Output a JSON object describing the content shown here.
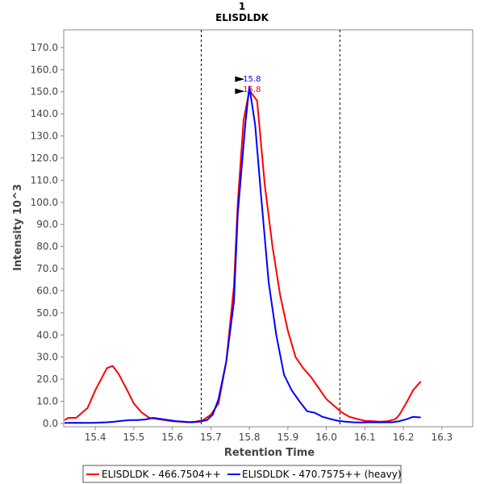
{
  "chart_data": {
    "type": "line",
    "title": "1",
    "subtitle": "ELISDLDK",
    "xlabel": "Retention Time",
    "ylabel": "Intensity 10^3",
    "xlim": [
      15.318,
      16.38
    ],
    "ylim": [
      -1.5,
      178
    ],
    "x_ticks": [
      "15.4",
      "15.5",
      "15.6",
      "15.7",
      "15.8",
      "15.9",
      "16.0",
      "16.1",
      "16.2",
      "16.3"
    ],
    "y_ticks": [
      "0.0",
      "10.0",
      "20.0",
      "30.0",
      "40.0",
      "50.0",
      "60.0",
      "70.0",
      "80.0",
      "90.0",
      "100.0",
      "110.0",
      "120.0",
      "130.0",
      "140.0",
      "150.0",
      "160.0",
      "170.0"
    ],
    "integration_bounds": [
      15.675,
      16.035
    ],
    "legend_position": "bottom",
    "series": [
      {
        "name": "ELISDLDK - 466.7504++",
        "color": "#ff0000",
        "x": [
          15.32,
          15.33,
          15.35,
          15.38,
          15.4,
          15.43,
          15.445,
          15.46,
          15.48,
          15.5,
          15.52,
          15.54,
          15.56,
          15.58,
          15.6,
          15.62,
          15.64,
          15.66,
          15.68,
          15.7,
          15.72,
          15.74,
          15.76,
          15.77,
          15.785,
          15.8,
          15.82,
          15.84,
          15.86,
          15.88,
          15.9,
          15.92,
          15.94,
          15.96,
          15.98,
          16.0,
          16.02,
          16.04,
          16.06,
          16.08,
          16.1,
          16.12,
          16.14,
          16.16,
          16.18,
          16.19,
          16.21,
          16.225,
          16.245
        ],
        "y": [
          1.5,
          2.5,
          2.5,
          7,
          15,
          25,
          26,
          22.5,
          16,
          9,
          5,
          2.5,
          2,
          1.5,
          1,
          0.8,
          0.5,
          0.8,
          1.5,
          4,
          9,
          28,
          62,
          100,
          137,
          150.6,
          146,
          108,
          80,
          58,
          42,
          30,
          25,
          21,
          16,
          11,
          8,
          5,
          3,
          2,
          1.2,
          1,
          0.8,
          1,
          2,
          4,
          10,
          15,
          19
        ]
      },
      {
        "name": "ELISDLDK - 470.7575++ (heavy)",
        "color": "#0000ff",
        "x": [
          15.32,
          15.35,
          15.38,
          15.4,
          15.43,
          15.45,
          15.47,
          15.49,
          15.51,
          15.53,
          15.55,
          15.57,
          15.59,
          15.61,
          15.63,
          15.65,
          15.67,
          15.69,
          15.705,
          15.72,
          15.74,
          15.76,
          15.77,
          15.79,
          15.8,
          15.815,
          15.83,
          15.85,
          15.87,
          15.89,
          15.91,
          15.93,
          15.95,
          15.97,
          15.99,
          16.01,
          16.03,
          16.05,
          16.07,
          16.09,
          16.11,
          16.13,
          16.15,
          16.17,
          16.19,
          16.21,
          16.225,
          16.245
        ],
        "y": [
          0.2,
          0.3,
          0.2,
          0.3,
          0.5,
          0.8,
          1.2,
          1.5,
          1.5,
          1.8,
          2.5,
          2,
          1.5,
          1,
          0.8,
          0.5,
          0.8,
          1.5,
          4,
          11,
          28,
          55,
          95,
          136,
          152.4,
          135,
          104,
          64,
          40,
          22,
          15,
          10,
          5.5,
          4.8,
          3,
          2,
          1.2,
          0.8,
          0.5,
          0.4,
          0.5,
          0.5,
          0.5,
          0.5,
          1,
          2,
          3,
          2.7
        ]
      }
    ],
    "annotations": [
      {
        "text": "15.8",
        "x": 15.79,
        "y": 152.4,
        "color": "#0000ff"
      },
      {
        "text": "15.8",
        "x": 15.79,
        "y": 150.6,
        "color": "#ff0000"
      }
    ]
  }
}
